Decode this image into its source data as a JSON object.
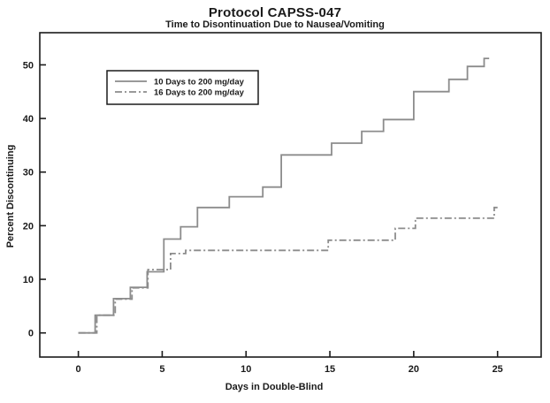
{
  "page": {
    "background": "#ffffff"
  },
  "chart_data": {
    "type": "line",
    "subtype": "step-post",
    "title": "Protocol CAPSS-047",
    "subtitle": "Time to Disontinuation Due to Nausea/Vomiting",
    "xlabel": "Days in Double-Blind",
    "ylabel": "Percent Discontinuing",
    "xlim": [
      -2.3,
      27.6
    ],
    "ylim": [
      -4.5,
      56
    ],
    "xticks": [
      0,
      5,
      10,
      15,
      20,
      25
    ],
    "yticks": [
      0,
      10,
      20,
      30,
      40,
      50
    ],
    "grid": false,
    "legend_position": "top-left-inside",
    "colors": {
      "line": "#8c8c8c",
      "axis": "#1a1a1a",
      "text": "#1a1a1a",
      "background": "#ffffff"
    },
    "series": [
      {
        "name": "10 Days to 200 mg/day",
        "style": "solid",
        "points_note": "each point [day, percent] is a step-up; value holds until next step",
        "points": [
          [
            0,
            0
          ],
          [
            1.0,
            3.3
          ],
          [
            2.1,
            6.4
          ],
          [
            3.1,
            8.5
          ],
          [
            4.1,
            11.4
          ],
          [
            5.1,
            17.5
          ],
          [
            6.1,
            19.8
          ],
          [
            7.1,
            23.4
          ],
          [
            9.0,
            25.4
          ],
          [
            11.0,
            27.2
          ],
          [
            12.1,
            33.2
          ],
          [
            15.1,
            35.4
          ],
          [
            16.9,
            37.6
          ],
          [
            18.2,
            39.8
          ],
          [
            20.0,
            45.0
          ],
          [
            22.1,
            47.3
          ],
          [
            23.2,
            49.7
          ],
          [
            24.2,
            51.2
          ]
        ],
        "end_x": 24.5
      },
      {
        "name": "16 Days to 200 mg/day",
        "style": "dash-dot",
        "points": [
          [
            0,
            0
          ],
          [
            1.1,
            3.3
          ],
          [
            2.2,
            6.3
          ],
          [
            3.2,
            8.4
          ],
          [
            4.15,
            11.8
          ],
          [
            5.5,
            14.8
          ],
          [
            6.4,
            15.4
          ],
          [
            14.9,
            17.3
          ],
          [
            18.9,
            19.5
          ],
          [
            20.1,
            21.4
          ],
          [
            24.8,
            23.4
          ]
        ],
        "end_x": 25.1
      }
    ]
  }
}
